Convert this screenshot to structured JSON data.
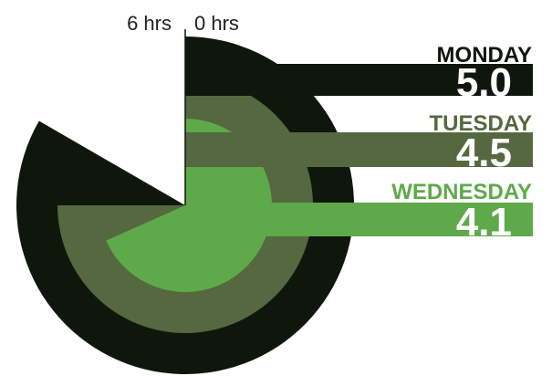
{
  "chart_data": {
    "type": "radial-bar",
    "scale_max_hours": 6,
    "scale_labels": {
      "end": "6 hrs",
      "start": "0 hrs"
    },
    "series": [
      {
        "name": "MONDAY",
        "value": 5.0,
        "display": "5.0",
        "color": "#0f170d"
      },
      {
        "name": "TUESDAY",
        "value": 4.5,
        "display": "4.5",
        "color": "#55683f"
      },
      {
        "name": "WEDNESDAY",
        "value": 4.1,
        "display": "4.1",
        "color": "#5ea94a"
      }
    ]
  }
}
